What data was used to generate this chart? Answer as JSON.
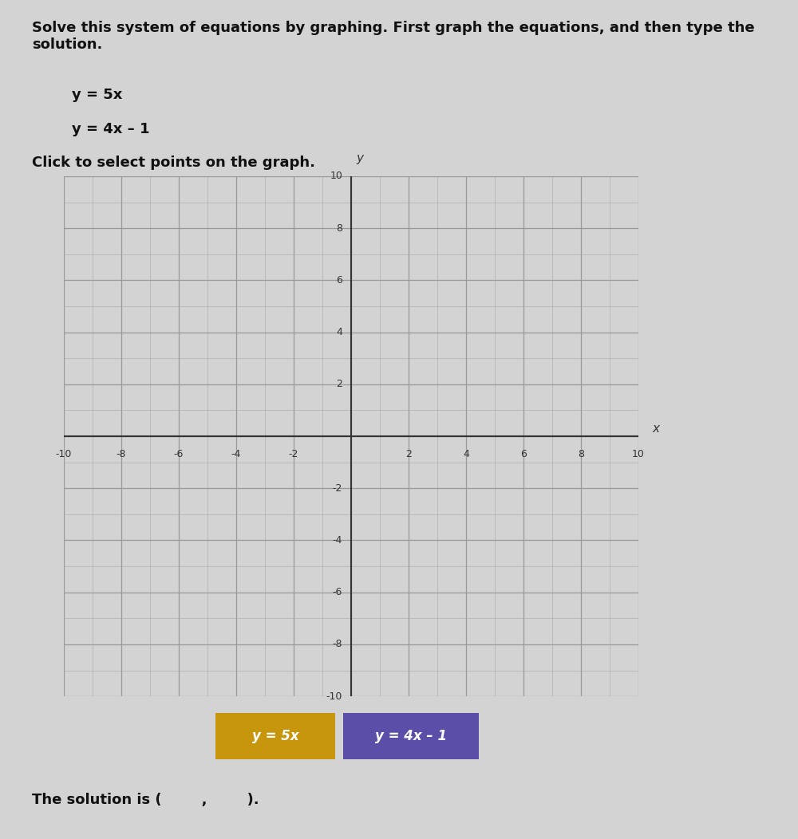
{
  "title_text": "Solve this system of equations by graphing. First graph the equations, and then type the\nsolution.",
  "eq1_label": "y = 5x",
  "eq2_label": "y = 4x – 1",
  "eq1_label_box": "y = 5x",
  "eq2_label_box": "y = 4x – 1",
  "click_text": "Click to select points on the graph.",
  "solution_text": "The solution is (        ,        ).",
  "xlim": [
    -10,
    10
  ],
  "ylim": [
    -10,
    10
  ],
  "xticks": [
    -10,
    -8,
    -6,
    -4,
    -2,
    2,
    4,
    6,
    8,
    10
  ],
  "yticks": [
    -10,
    -8,
    -6,
    -4,
    -2,
    2,
    4,
    6,
    8,
    10
  ],
  "bg_color": "#d3d3d3",
  "grid_color": "#b0b0b0",
  "axis_color": "#333333",
  "eq1_color": "#c8960c",
  "eq2_color": "#5b4ea8",
  "eq1_box_color": "#c8960c",
  "eq2_box_color": "#5b4ea8",
  "font_color": "#111111",
  "label_color_x": "#555555",
  "label_color_y": "#555555"
}
